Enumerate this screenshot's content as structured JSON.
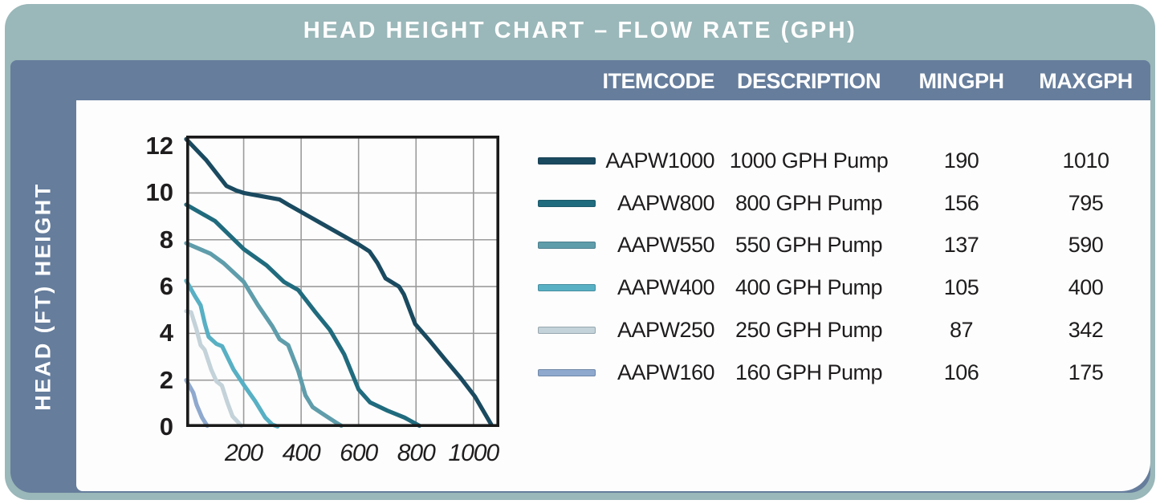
{
  "title": "HEAD HEIGHT CHART – FLOW RATE (GPH)",
  "y_axis_panel_label": "HEAD (FT) HEIGHT",
  "colors": {
    "frame_sage": "#9ab7b9",
    "panel_slate": "#667d9c",
    "content_white": "#fdfdfd",
    "title_text": "#ffffff",
    "body_text": "#1e1c1d",
    "grid_line": "#9b9b9b",
    "plot_border": "#1a1a1a"
  },
  "table": {
    "headers": [
      "ITEM CODE",
      "DESCRIPTION",
      "MIN GPH",
      "MAX GPH"
    ],
    "rows": [
      {
        "code": "AAPW1000",
        "description": "1000 GPH Pump",
        "min_gph": "190",
        "max_gph": "1010",
        "color": "#1a4a60"
      },
      {
        "code": "AAPW800",
        "description": "800 GPH Pump",
        "min_gph": "156",
        "max_gph": "795",
        "color": "#206b7e"
      },
      {
        "code": "AAPW550",
        "description": "550 GPH Pump",
        "min_gph": "137",
        "max_gph": "590",
        "color": "#5f9dab"
      },
      {
        "code": "AAPW400",
        "description": "400 GPH Pump",
        "min_gph": "105",
        "max_gph": "400",
        "color": "#58b0c4"
      },
      {
        "code": "AAPW250",
        "description": "250 GPH Pump",
        "min_gph": "87",
        "max_gph": "342",
        "color": "#c4d2d9"
      },
      {
        "code": "AAPW160",
        "description": "160 GPH Pump",
        "min_gph": "106",
        "max_gph": "175",
        "color": "#8fa9ce"
      }
    ]
  },
  "chart_data": {
    "type": "line",
    "title": "HEAD HEIGHT CHART – FLOW RATE (GPH)",
    "xlabel": "FLOW RATE (GPH)",
    "ylabel": "HEAD (FT) HEIGHT",
    "grid": true,
    "legend_position": "right-table",
    "x_axis": {
      "min": 0,
      "max": 1090,
      "ticks": [
        200,
        400,
        600,
        800,
        1000
      ]
    },
    "y_axis": {
      "min": 0,
      "max": 12.45,
      "ticks": [
        0,
        2,
        4,
        6,
        8,
        10,
        12
      ]
    },
    "series": [
      {
        "name": "AAPW1000",
        "color": "#1a4a60",
        "points": [
          [
            0,
            12.3
          ],
          [
            70,
            11.4
          ],
          [
            140,
            10.3
          ],
          [
            175,
            10.1
          ],
          [
            200,
            10.0
          ],
          [
            325,
            9.72
          ],
          [
            355,
            9.5
          ],
          [
            470,
            8.7
          ],
          [
            600,
            7.8
          ],
          [
            638,
            7.5
          ],
          [
            666,
            7.0
          ],
          [
            694,
            6.35
          ],
          [
            741,
            6.0
          ],
          [
            758,
            5.66
          ],
          [
            797,
            4.4
          ],
          [
            850,
            3.65
          ],
          [
            900,
            2.9
          ],
          [
            955,
            2.1
          ],
          [
            1005,
            1.3
          ],
          [
            1062,
            0.1
          ]
        ]
      },
      {
        "name": "AAPW800",
        "color": "#206b7e",
        "points": [
          [
            0,
            9.5
          ],
          [
            100,
            8.8
          ],
          [
            200,
            7.6
          ],
          [
            280,
            6.9
          ],
          [
            340,
            6.2
          ],
          [
            390,
            5.85
          ],
          [
            450,
            4.9
          ],
          [
            500,
            4.15
          ],
          [
            550,
            3.1
          ],
          [
            600,
            1.6
          ],
          [
            640,
            1.05
          ],
          [
            700,
            0.7
          ],
          [
            760,
            0.4
          ],
          [
            812,
            0.05
          ]
        ]
      },
      {
        "name": "AAPW550",
        "color": "#5f9dab",
        "points": [
          [
            0,
            7.85
          ],
          [
            85,
            7.4
          ],
          [
            130,
            7.0
          ],
          [
            200,
            6.2
          ],
          [
            250,
            5.2
          ],
          [
            300,
            4.3
          ],
          [
            325,
            3.75
          ],
          [
            355,
            3.5
          ],
          [
            390,
            2.4
          ],
          [
            415,
            1.35
          ],
          [
            440,
            0.85
          ],
          [
            470,
            0.6
          ],
          [
            520,
            0.2
          ],
          [
            540,
            0.05
          ]
        ]
      },
      {
        "name": "AAPW400",
        "color": "#58b0c4",
        "points": [
          [
            0,
            6.25
          ],
          [
            30,
            5.6
          ],
          [
            50,
            5.2
          ],
          [
            65,
            4.4
          ],
          [
            78,
            3.85
          ],
          [
            105,
            3.55
          ],
          [
            125,
            3.45
          ],
          [
            165,
            2.45
          ],
          [
            200,
            1.8
          ],
          [
            240,
            1.1
          ],
          [
            275,
            0.4
          ],
          [
            300,
            0.1
          ],
          [
            318,
            0.02
          ]
        ]
      },
      {
        "name": "AAPW250",
        "color": "#c4d2d9",
        "points": [
          [
            0,
            4.95
          ],
          [
            17,
            4.9
          ],
          [
            35,
            4.2
          ],
          [
            50,
            3.5
          ],
          [
            64,
            3.3
          ],
          [
            87,
            2.45
          ],
          [
            105,
            1.95
          ],
          [
            124,
            1.77
          ],
          [
            143,
            1.05
          ],
          [
            161,
            0.46
          ],
          [
            192,
            0.05
          ]
        ]
      },
      {
        "name": "AAPW160",
        "color": "#8fa9ce",
        "points": [
          [
            0,
            2.0
          ],
          [
            25,
            1.45
          ],
          [
            36,
            0.95
          ],
          [
            55,
            0.4
          ],
          [
            73,
            0.05
          ]
        ]
      }
    ]
  }
}
